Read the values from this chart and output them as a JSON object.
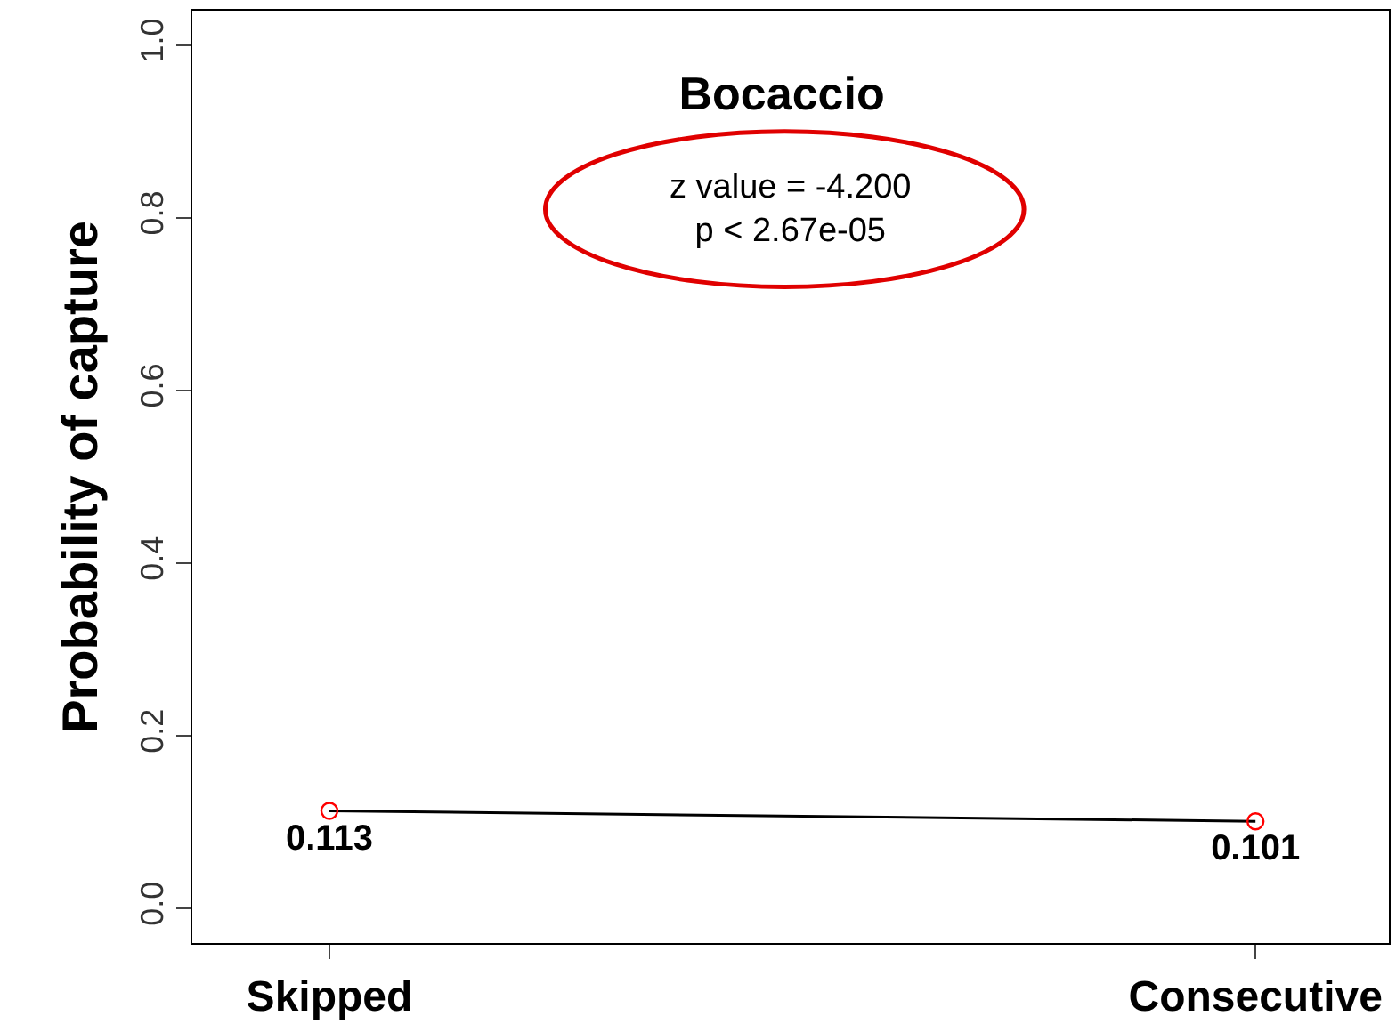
{
  "chart_data": {
    "type": "line",
    "title": "Bocaccio",
    "ylabel": "Probability of capture",
    "categories": [
      "Skipped",
      "Consecutive"
    ],
    "series": [
      {
        "color": "#000000",
        "colors": [
          "#ff0000",
          "#ff0000"
        ],
        "values": [
          0.113,
          0.101
        ]
      }
    ],
    "data_labels": true,
    "marker": "circle",
    "ylim": [
      -0.04,
      1.04
    ],
    "yticks": [
      {
        "value": 0,
        "label": "0.0"
      },
      0.2,
      0.4,
      0.6,
      0.8,
      {
        "value": 1,
        "label": "1.0"
      }
    ],
    "annotations": [
      "z value = -4.200\np < 2.67e-05"
    ],
    "legend": false
  }
}
